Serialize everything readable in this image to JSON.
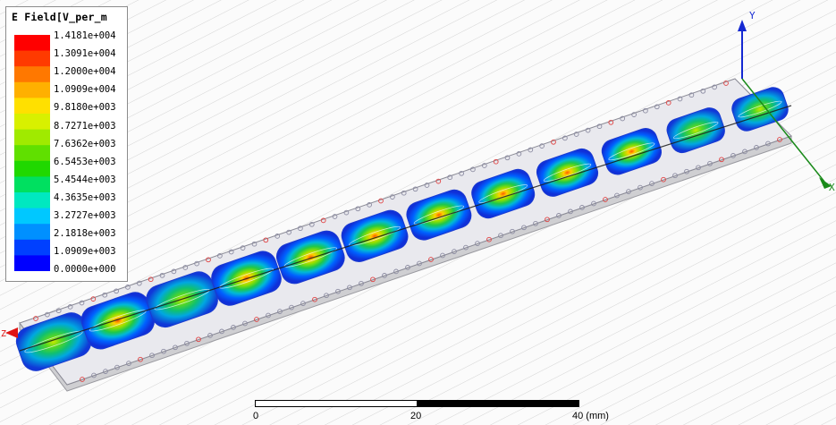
{
  "legend": {
    "title": "E Field[V_per_m",
    "labels": [
      "1.4181e+004",
      "1.3091e+004",
      "1.2000e+004",
      "1.0909e+004",
      "9.8180e+003",
      "8.7271e+003",
      "7.6362e+003",
      "6.5453e+003",
      "5.4544e+003",
      "4.3635e+003",
      "3.2727e+003",
      "2.1818e+003",
      "1.0909e+003",
      "0.0000e+000"
    ],
    "colormap": [
      "#ff0000",
      "#ff3a00",
      "#ff7800",
      "#ffb000",
      "#ffe000",
      "#d8f000",
      "#a0ea00",
      "#60e000",
      "#20d800",
      "#00e060",
      "#00e8c0",
      "#00c8ff",
      "#0090ff",
      "#0040ff",
      "#0000ff"
    ]
  },
  "axes": {
    "y_label": "Y",
    "x_label": "X",
    "z_label": "Z",
    "y_color": "#1428d2",
    "x_color": "#1a8a1a",
    "z_color": "#e01414"
  },
  "scale": {
    "labels": [
      "0",
      "20",
      "40 (mm)"
    ]
  }
}
